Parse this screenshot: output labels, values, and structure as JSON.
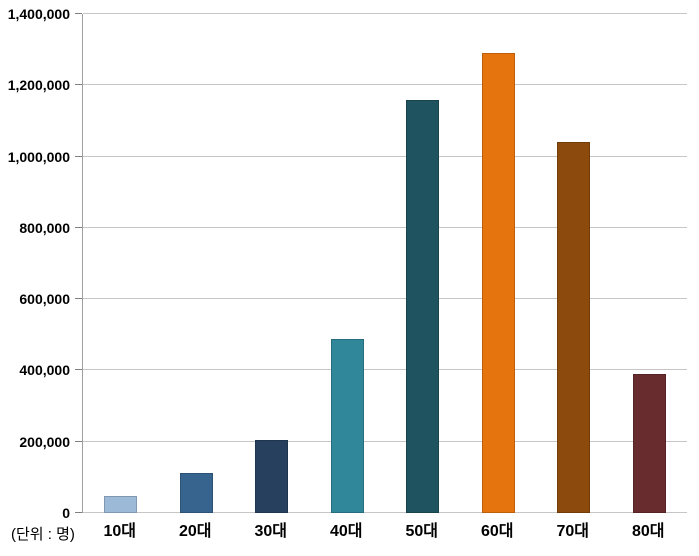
{
  "chart_data": {
    "type": "bar",
    "title": "",
    "xlabel": "",
    "ylabel": "",
    "unit_label": "(단위 : 명)",
    "categories": [
      "10대",
      "20대",
      "30대",
      "40대",
      "50대",
      "60대",
      "70대",
      "80대"
    ],
    "values": [
      47000,
      112000,
      205000,
      488000,
      1160000,
      1290000,
      1040000,
      390000
    ],
    "bar_colors": [
      "#9DB9D8",
      "#36648F",
      "#26405E",
      "#2F8799",
      "#1F5360",
      "#E5740E",
      "#8C4A0C",
      "#692C2E"
    ],
    "ylim": [
      0,
      1400000
    ],
    "ytick_interval": 200000,
    "ytick_labels": [
      "0",
      "200,000",
      "400,000",
      "600,000",
      "800,000",
      "1,000,000",
      "1,200,000",
      "1,400,000"
    ],
    "grid": "horizontal",
    "legend": "none",
    "gridline_color": "#c6c6c6",
    "axis_color": "#a0a0a0",
    "tick_color": "#808080",
    "label_color": "#000000",
    "background_color": "#ffffff"
  }
}
